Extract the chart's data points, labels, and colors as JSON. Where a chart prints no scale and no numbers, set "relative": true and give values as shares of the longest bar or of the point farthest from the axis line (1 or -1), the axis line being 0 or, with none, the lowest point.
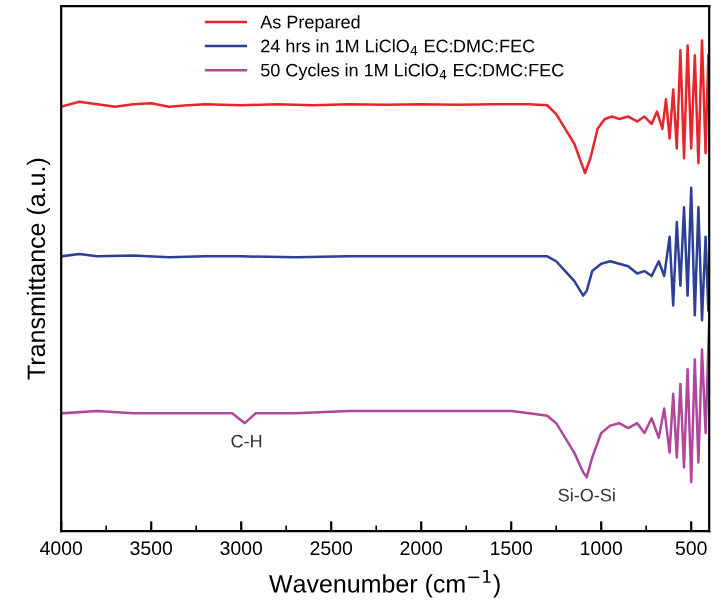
{
  "chart_data": {
    "type": "line",
    "relative": true,
    "xlabel": "Wavenumber (cm$^{−1}$)",
    "ylabel": "Transmittance (a.u.)",
    "xlim": [
      4000,
      400
    ],
    "xticks": [
      4000,
      3500,
      3000,
      2500,
      2000,
      1500,
      1000,
      500
    ],
    "grid": false,
    "legend": "top",
    "line_style": "solid",
    "marker": "none",
    "annotations": [
      {
        "text": "C-H",
        "x": 2970,
        "y": 0.22
      },
      {
        "text": "Si-O-Si",
        "x": 1080,
        "y": 0.11
      }
    ],
    "series": [
      {
        "name": "As Prepared",
        "color": "#e8252b",
        "x": [
          4000,
          3900,
          3800,
          3700,
          3600,
          3500,
          3400,
          3300,
          3200,
          3000,
          2800,
          2600,
          2400,
          2200,
          2000,
          1800,
          1600,
          1400,
          1300,
          1250,
          1200,
          1150,
          1110,
          1090,
          1060,
          1020,
          980,
          940,
          900,
          850,
          800,
          760,
          720,
          690,
          660,
          640,
          620,
          600,
          580,
          560,
          540,
          520,
          500,
          480,
          460,
          440,
          420,
          405
        ],
        "values": [
          0.865,
          0.875,
          0.87,
          0.865,
          0.87,
          0.872,
          0.865,
          0.868,
          0.87,
          0.868,
          0.87,
          0.868,
          0.87,
          0.869,
          0.87,
          0.869,
          0.87,
          0.87,
          0.868,
          0.85,
          0.82,
          0.79,
          0.75,
          0.73,
          0.76,
          0.82,
          0.84,
          0.845,
          0.84,
          0.845,
          0.835,
          0.845,
          0.83,
          0.855,
          0.82,
          0.88,
          0.8,
          0.9,
          0.78,
          0.98,
          0.76,
          0.99,
          0.78,
          0.97,
          0.75,
          1.0,
          0.77,
          0.97
        ]
      },
      {
        "name": "24 hrs in 1M LiClO$_{4}$ EC:DMC:FEC",
        "color": "#2e3f94",
        "x": [
          4000,
          3900,
          3800,
          3600,
          3400,
          3200,
          3000,
          2700,
          2400,
          2000,
          1700,
          1500,
          1300,
          1250,
          1200,
          1150,
          1100,
          1080,
          1050,
          1000,
          950,
          900,
          850,
          800,
          760,
          720,
          680,
          650,
          620,
          600,
          580,
          560,
          540,
          520,
          500,
          480,
          460,
          440,
          420,
          405
        ],
        "values": [
          0.56,
          0.565,
          0.56,
          0.562,
          0.558,
          0.56,
          0.56,
          0.558,
          0.56,
          0.56,
          0.56,
          0.56,
          0.56,
          0.55,
          0.53,
          0.51,
          0.48,
          0.49,
          0.53,
          0.545,
          0.55,
          0.545,
          0.54,
          0.525,
          0.53,
          0.52,
          0.55,
          0.52,
          0.6,
          0.46,
          0.63,
          0.5,
          0.66,
          0.48,
          0.7,
          0.44,
          0.66,
          0.43,
          0.6,
          0.45
        ]
      },
      {
        "name": "50 Cycles in 1M LiClO$_{4}$ EC:DMC:FEC",
        "color": "#b0479c",
        "x": [
          4000,
          3800,
          3600,
          3400,
          3200,
          3050,
          2980,
          2920,
          2700,
          2400,
          2000,
          1700,
          1500,
          1400,
          1300,
          1250,
          1200,
          1150,
          1100,
          1080,
          1050,
          1000,
          950,
          900,
          850,
          800,
          760,
          720,
          680,
          650,
          620,
          600,
          580,
          560,
          540,
          520,
          500,
          480,
          460,
          440,
          420,
          400
        ],
        "values": [
          0.24,
          0.245,
          0.24,
          0.24,
          0.24,
          0.24,
          0.22,
          0.24,
          0.24,
          0.245,
          0.245,
          0.245,
          0.245,
          0.24,
          0.235,
          0.22,
          0.19,
          0.16,
          0.12,
          0.11,
          0.15,
          0.2,
          0.215,
          0.22,
          0.21,
          0.22,
          0.2,
          0.23,
          0.19,
          0.25,
          0.16,
          0.28,
          0.15,
          0.3,
          0.13,
          0.33,
          0.1,
          0.35,
          0.14,
          0.37,
          0.2,
          0.43
        ]
      }
    ]
  }
}
